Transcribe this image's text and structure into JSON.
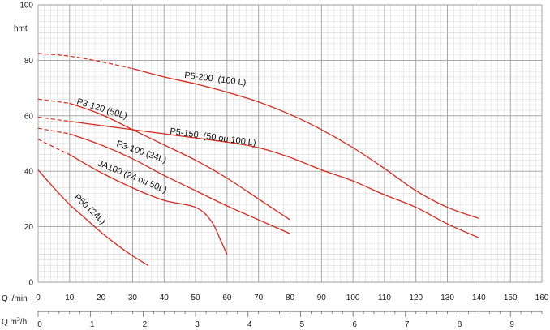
{
  "chart_data": {
    "type": "line",
    "title": "",
    "ylabel": "hmt",
    "xlabel": "Q l/min",
    "x2label": "Q m³/h",
    "xlim": [
      0,
      160
    ],
    "ylim": [
      0,
      100
    ],
    "x2lim": [
      0,
      9.6
    ],
    "xticks": [
      "0",
      "10",
      "20",
      "30",
      "40",
      "50",
      "60",
      "70",
      "80",
      "90",
      "100",
      "110",
      "120",
      "130",
      "140",
      "150",
      "160"
    ],
    "yticks": [
      "0",
      "20",
      "40",
      "60",
      "80",
      "100"
    ],
    "x2ticks": [
      "0",
      "1",
      "2",
      "3",
      "4",
      "5",
      "6",
      "7",
      "8",
      "9"
    ],
    "grid": true,
    "colors": {
      "curve": "#d62a1e",
      "major_grid": "#9e9e9e",
      "minor_grid": "#d6d6d6"
    },
    "series": [
      {
        "name": "P5-200  (100 L)",
        "dashed_x": [
          0,
          30
        ],
        "solid_x": [
          30,
          140
        ],
        "x": [
          0,
          10,
          20,
          30,
          40,
          50,
          60,
          70,
          80,
          90,
          100,
          110,
          120,
          130,
          140
        ],
        "y": [
          82.5,
          81.5,
          79.5,
          77,
          74,
          71.5,
          68.5,
          65,
          60.5,
          55,
          48.5,
          41,
          33,
          27,
          23
        ]
      },
      {
        "name": "P3-120 (50L)",
        "dashed_x": [
          0,
          10
        ],
        "solid_x": [
          10,
          80
        ],
        "x": [
          0,
          10,
          20,
          30,
          40,
          50,
          60,
          70,
          80
        ],
        "y": [
          66,
          64.5,
          60.5,
          55,
          49.5,
          44,
          37.5,
          30,
          22.5
        ]
      },
      {
        "name": "P5-150  (50 ou 100 L)",
        "dashed_x": [
          0,
          10
        ],
        "solid_x": [
          10,
          140
        ],
        "x": [
          0,
          10,
          20,
          30,
          40,
          50,
          60,
          70,
          80,
          90,
          100,
          110,
          120,
          130,
          140
        ],
        "y": [
          59.5,
          58,
          56.5,
          55,
          53.5,
          52,
          50.5,
          48.5,
          45,
          40.5,
          36.5,
          31.5,
          27,
          21,
          16
        ]
      },
      {
        "name": "P3-100 (24L)",
        "dashed_x": [
          0,
          10
        ],
        "solid_x": [
          10,
          80
        ],
        "x": [
          0,
          10,
          20,
          30,
          40,
          50,
          60,
          70,
          80
        ],
        "y": [
          55.5,
          53.5,
          49.5,
          44.5,
          38.5,
          33,
          27.5,
          22.5,
          17.5
        ]
      },
      {
        "name": "JA100 (24 ou 50L)",
        "dashed_x": [
          0,
          10
        ],
        "solid_x": [
          10,
          60
        ],
        "x": [
          0,
          10,
          20,
          30,
          40,
          50,
          55,
          58,
          60
        ],
        "y": [
          51.5,
          46,
          39.5,
          34,
          29.5,
          27,
          22,
          15,
          10
        ]
      },
      {
        "name": "P50 (24L)",
        "dashed_x": [],
        "solid_x": [
          0,
          35
        ],
        "x": [
          0,
          5,
          10,
          15,
          20,
          25,
          30,
          35
        ],
        "y": [
          40.5,
          34,
          28,
          23,
          18,
          13.5,
          9.5,
          6
        ]
      }
    ]
  }
}
